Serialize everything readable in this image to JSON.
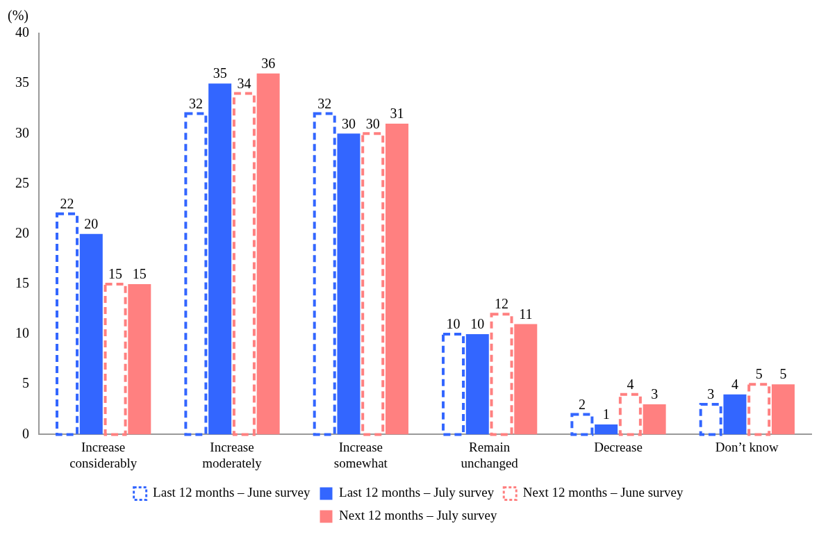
{
  "chart_data": {
    "type": "bar",
    "ylabel": "(%)",
    "categories": [
      "Increase considerably",
      "Increase moderately",
      "Increase somewhat",
      "Remain unchanged",
      "Decrease",
      "Don’t know"
    ],
    "series": [
      {
        "name": "Last 12 months – June survey",
        "color": "#3366ff",
        "line_style": "dashed",
        "values": [
          22,
          32,
          32,
          10,
          2,
          3
        ]
      },
      {
        "name": "Last 12 months – July survey",
        "color": "#3366ff",
        "values": [
          20,
          35,
          30,
          10,
          1,
          4
        ]
      },
      {
        "name": "Next 12 months – June survey",
        "color": "#ff8080",
        "line_style": "dashed",
        "values": [
          15,
          34,
          30,
          12,
          4,
          5
        ]
      },
      {
        "name": "Next 12 months – July survey",
        "color": "#ff8080",
        "values": [
          15,
          36,
          31,
          11,
          3,
          5
        ]
      }
    ],
    "ylim": [
      0,
      40
    ],
    "yticks": [
      0,
      5,
      10,
      15,
      20,
      25,
      30,
      35,
      40
    ],
    "grid": false,
    "legend": "bottom",
    "data_labels": true
  }
}
